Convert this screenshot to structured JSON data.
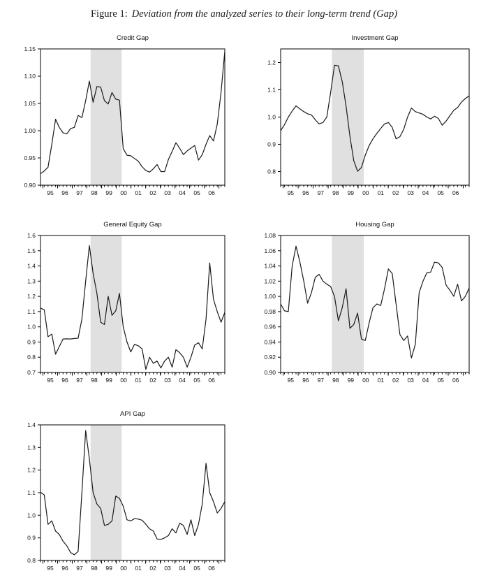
{
  "figure_title": {
    "prefix": "Figure 1:",
    "title": "Deviation from the analyzed series to their long-term trend (Gap)"
  },
  "colors": {
    "line": "#1a1a1a",
    "band": "#e0e0e0",
    "frame": "#000000",
    "text": "#111111",
    "background": "#ffffff"
  },
  "x_axis": {
    "year_labels": [
      "95",
      "96",
      "97",
      "98",
      "99",
      "00",
      "01",
      "02",
      "03",
      "04",
      "05",
      "06"
    ],
    "first_label_index": 2.6,
    "label_step_index": 3.9
  },
  "chart_data": [
    {
      "type": "line",
      "title": "Credit Gap",
      "ylim": [
        0.9,
        1.15
      ],
      "y_ticks": [
        "0.90",
        "0.95",
        "1.00",
        "1.05",
        "1.10",
        "1.15"
      ],
      "x_tick_labels": [
        "95",
        "96",
        "97",
        "98",
        "99",
        "00",
        "01",
        "02",
        "03",
        "04",
        "05",
        "06"
      ],
      "band": [
        13.3,
        21.6
      ],
      "values": [
        0.921,
        0.926,
        0.933,
        0.975,
        1.021,
        1.006,
        0.996,
        0.994,
        1.004,
        1.006,
        1.028,
        1.024,
        1.055,
        1.091,
        1.052,
        1.081,
        1.08,
        1.055,
        1.049,
        1.07,
        1.058,
        1.056,
        0.967,
        0.955,
        0.954,
        0.949,
        0.944,
        0.934,
        0.927,
        0.924,
        0.93,
        0.938,
        0.925,
        0.925,
        0.947,
        0.962,
        0.978,
        0.968,
        0.956,
        0.963,
        0.968,
        0.973,
        0.946,
        0.956,
        0.975,
        0.991,
        0.981,
        1.012,
        1.07,
        1.146
      ]
    },
    {
      "type": "line",
      "title": "Investment Gap",
      "ylim": [
        0.75,
        1.25
      ],
      "y_ticks": [
        "0.8",
        "0.9",
        "1.0",
        "1.1",
        "1.2"
      ],
      "x_tick_labels": [
        "95",
        "96",
        "97",
        "98",
        "99",
        "00",
        "01",
        "02",
        "03",
        "04",
        "05",
        "06"
      ],
      "band": [
        13.3,
        21.6
      ],
      "values": [
        0.95,
        0.972,
        1.0,
        1.022,
        1.041,
        1.03,
        1.02,
        1.012,
        1.008,
        0.99,
        0.975,
        0.98,
        1.0,
        1.09,
        1.19,
        1.188,
        1.13,
        1.04,
        0.93,
        0.84,
        0.801,
        0.815,
        0.86,
        0.895,
        0.92,
        0.94,
        0.958,
        0.975,
        0.98,
        0.962,
        0.92,
        0.928,
        0.955,
        1.0,
        1.033,
        1.02,
        1.015,
        1.01,
        1.0,
        0.993,
        1.003,
        0.995,
        0.97,
        0.985,
        1.005,
        1.025,
        1.035,
        1.055,
        1.068,
        1.078
      ]
    },
    {
      "type": "line",
      "title": "General Equity Gap",
      "ylim": [
        0.7,
        1.6
      ],
      "y_ticks": [
        "0.7",
        "0.8",
        "0.9",
        "1.0",
        "1.1",
        "1.2",
        "1.3",
        "1.4",
        "1.5",
        "1.6"
      ],
      "x_tick_labels": [
        "95",
        "96",
        "97",
        "98",
        "99",
        "00",
        "01",
        "02",
        "03",
        "04",
        "05",
        "06"
      ],
      "band": [
        13.3,
        21.6
      ],
      "values": [
        1.123,
        1.112,
        0.935,
        0.952,
        0.82,
        0.87,
        0.92,
        0.921,
        0.92,
        0.923,
        0.925,
        1.05,
        1.3,
        1.534,
        1.35,
        1.22,
        1.03,
        1.015,
        1.2,
        1.075,
        1.105,
        1.22,
        1.0,
        0.9,
        0.835,
        0.885,
        0.875,
        0.855,
        0.72,
        0.8,
        0.76,
        0.775,
        0.73,
        0.775,
        0.8,
        0.735,
        0.85,
        0.83,
        0.8,
        0.735,
        0.8,
        0.88,
        0.895,
        0.855,
        1.05,
        1.42,
        1.18,
        1.1,
        1.03,
        1.095
      ]
    },
    {
      "type": "line",
      "title": "Housing Gap",
      "ylim": [
        0.9,
        1.08
      ],
      "y_ticks": [
        "0.90",
        "0.92",
        "0.94",
        "0.96",
        "0.98",
        "1.00",
        "1.02",
        "1.04",
        "1.06",
        "1.08"
      ],
      "x_tick_labels": [
        "95",
        "96",
        "97",
        "98",
        "99",
        "00",
        "01",
        "02",
        "03",
        "04",
        "05",
        "06"
      ],
      "band": [
        13.3,
        21.6
      ],
      "values": [
        0.99,
        0.981,
        0.98,
        1.04,
        1.066,
        1.045,
        1.02,
        0.991,
        1.005,
        1.025,
        1.029,
        1.02,
        1.016,
        1.013,
        1.0,
        0.968,
        0.985,
        1.01,
        0.958,
        0.963,
        0.978,
        0.944,
        0.942,
        0.965,
        0.985,
        0.99,
        0.988,
        1.01,
        1.036,
        1.03,
        0.99,
        0.95,
        0.942,
        0.948,
        0.919,
        0.937,
        1.005,
        1.02,
        1.031,
        1.032,
        1.045,
        1.044,
        1.038,
        1.015,
        1.008,
        1.0,
        1.016,
        0.994,
        1.0,
        1.011
      ]
    },
    {
      "type": "line",
      "title": "API Gap",
      "ylim": [
        0.8,
        1.4
      ],
      "y_ticks": [
        "0.8",
        "0.9",
        "1.0",
        "1.1",
        "1.2",
        "1.3",
        "1.4"
      ],
      "x_tick_labels": [
        "95",
        "96",
        "97",
        "98",
        "99",
        "00",
        "01",
        "02",
        "03",
        "04",
        "05",
        "06"
      ],
      "band": [
        13.3,
        21.6
      ],
      "values": [
        1.102,
        1.09,
        0.96,
        0.975,
        0.93,
        0.915,
        0.885,
        0.865,
        0.835,
        0.825,
        0.84,
        1.1,
        1.375,
        1.25,
        1.1,
        1.05,
        1.03,
        0.955,
        0.96,
        0.975,
        1.085,
        1.075,
        1.04,
        0.98,
        0.975,
        0.985,
        0.983,
        0.978,
        0.96,
        0.94,
        0.93,
        0.895,
        0.893,
        0.9,
        0.91,
        0.94,
        0.922,
        0.965,
        0.955,
        0.915,
        0.98,
        0.91,
        0.96,
        1.05,
        1.23,
        1.1,
        1.06,
        1.01,
        1.03,
        1.06
      ]
    }
  ]
}
